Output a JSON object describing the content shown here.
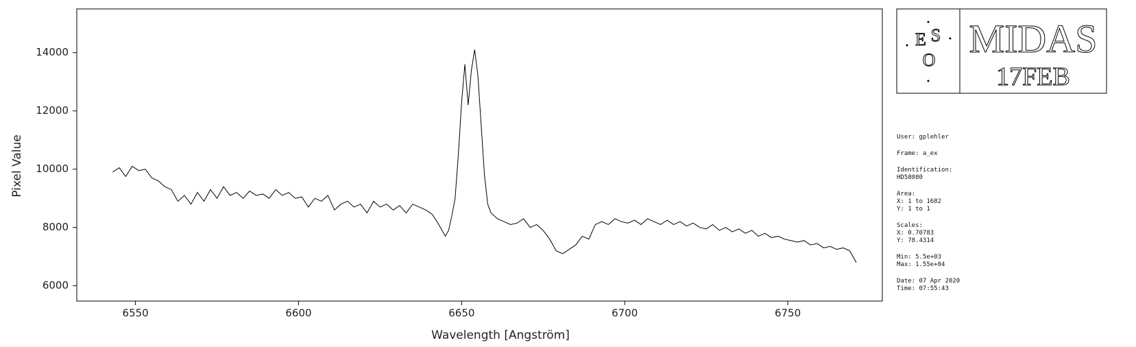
{
  "chart_data": {
    "type": "line",
    "xlabel": "Wavelength [Angström]",
    "ylabel": "Pixel Value",
    "color": "#000000",
    "x": [
      6543,
      6545,
      6547,
      6549,
      6551,
      6553,
      6555,
      6557,
      6559,
      6561,
      6563,
      6565,
      6567,
      6569,
      6571,
      6573,
      6575,
      6577,
      6579,
      6581,
      6583,
      6585,
      6587,
      6589,
      6591,
      6593,
      6595,
      6597,
      6599,
      6601,
      6603,
      6605,
      6607,
      6609,
      6611,
      6613,
      6615,
      6617,
      6619,
      6621,
      6623,
      6625,
      6627,
      6629,
      6631,
      6633,
      6635,
      6637,
      6639,
      6641,
      6643,
      6645,
      6646,
      6647,
      6648,
      6649,
      6650,
      6651,
      6652,
      6653,
      6654,
      6655,
      6656,
      6657,
      6658,
      6659,
      6661,
      6663,
      6665,
      6667,
      6669,
      6671,
      6673,
      6675,
      6677,
      6679,
      6681,
      6683,
      6685,
      6687,
      6689,
      6691,
      6693,
      6695,
      6697,
      6699,
      6701,
      6703,
      6705,
      6707,
      6709,
      6711,
      6713,
      6715,
      6717,
      6719,
      6721,
      6723,
      6725,
      6727,
      6729,
      6731,
      6733,
      6735,
      6737,
      6739,
      6741,
      6743,
      6745,
      6747,
      6749,
      6751,
      6753,
      6755,
      6757,
      6759,
      6761,
      6763,
      6765,
      6767,
      6769,
      6771
    ],
    "values": [
      9900,
      10050,
      9750,
      10100,
      9950,
      10000,
      9700,
      9600,
      9400,
      9300,
      8900,
      9100,
      8800,
      9200,
      8900,
      9300,
      9000,
      9400,
      9100,
      9200,
      9000,
      9250,
      9100,
      9150,
      9000,
      9300,
      9100,
      9200,
      9000,
      9050,
      8700,
      9000,
      8900,
      9100,
      8600,
      8800,
      8900,
      8700,
      8800,
      8500,
      8900,
      8700,
      8800,
      8600,
      8750,
      8500,
      8800,
      8700,
      8600,
      8450,
      8100,
      7700,
      7900,
      8400,
      9000,
      10500,
      12300,
      13600,
      12200,
      13400,
      14100,
      13200,
      11500,
      9800,
      8800,
      8500,
      8300,
      8200,
      8100,
      8150,
      8300,
      8000,
      8100,
      7900,
      7600,
      7200,
      7100,
      7250,
      7400,
      7700,
      7600,
      8100,
      8200,
      8100,
      8300,
      8200,
      8150,
      8250,
      8100,
      8300,
      8200,
      8100,
      8250,
      8100,
      8200,
      8050,
      8150,
      8000,
      7950,
      8100,
      7900,
      8000,
      7850,
      7950,
      7800,
      7900,
      7700,
      7800,
      7650,
      7700,
      7600,
      7550,
      7500,
      7550,
      7400,
      7450,
      7300,
      7350,
      7250,
      7300,
      7200,
      6800
    ],
    "xlim": [
      6532,
      6779
    ],
    "xticks": [
      6550,
      6600,
      6650,
      6700,
      6750
    ],
    "ylim": [
      5475,
      15500
    ],
    "yticks": [
      6000,
      8000,
      10000,
      12000,
      14000
    ]
  },
  "panel": {
    "logo": {
      "e": "E",
      "s": "S",
      "o": "O",
      "name": "MIDAS",
      "version": "17FEB"
    },
    "info": [
      [
        "User: gplehler"
      ],
      [
        "Frame: a_ex"
      ],
      [
        "Identification:",
        "HD58080"
      ],
      [
        "Area:",
        "X: 1 to 1682",
        "Y: 1 to 1"
      ],
      [
        "Scales:",
        "X: 0.70783",
        "Y: 78.4314"
      ],
      [
        "Min: 5.5e+03",
        "Max: 1.55e+04"
      ],
      [
        "Date: 07 Apr 2020",
        "Time: 07:55:43"
      ]
    ]
  }
}
